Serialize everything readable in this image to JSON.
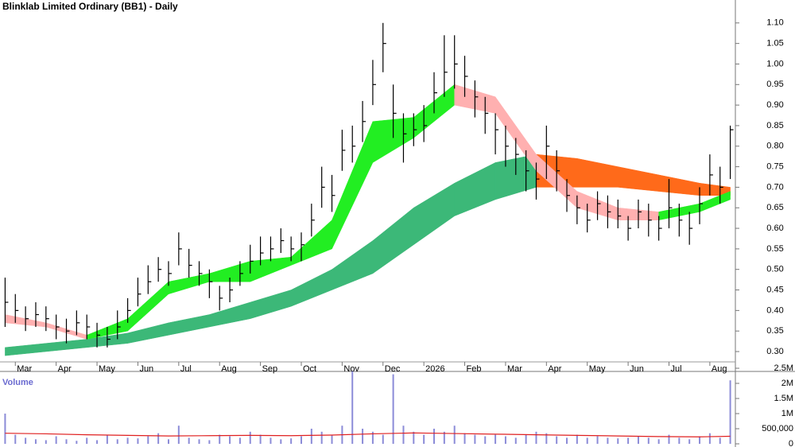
{
  "chart_data": {
    "type": "ohlc",
    "title": "Blinklab Limited Ordinary (BB1) - Daily",
    "categories": [
      null,
      "Mar",
      null,
      null,
      null,
      "Apr",
      null,
      null,
      null,
      "May",
      null,
      null,
      null,
      "Jun",
      null,
      null,
      null,
      "Jul",
      null,
      null,
      null,
      "Aug",
      null,
      null,
      null,
      "Sep",
      null,
      null,
      null,
      "Oct",
      null,
      null,
      null,
      "Nov",
      null,
      null,
      null,
      "Dec",
      null,
      null,
      null,
      "2026",
      null,
      null,
      null,
      "Feb",
      null,
      null,
      null,
      "Mar",
      null,
      null,
      null,
      "Apr",
      null,
      null,
      null,
      "May",
      null,
      null,
      null,
      "Jun",
      null,
      null,
      null,
      "Jul",
      null,
      null,
      null,
      "Aug",
      null,
      null
    ],
    "high": [
      0.48,
      0.44,
      0.41,
      0.42,
      0.41,
      0.39,
      0.38,
      0.4,
      0.39,
      0.37,
      0.36,
      0.4,
      0.43,
      0.48,
      0.51,
      0.53,
      0.52,
      0.59,
      0.55,
      0.52,
      0.5,
      0.46,
      0.48,
      0.52,
      0.56,
      0.58,
      0.58,
      0.6,
      0.58,
      0.59,
      0.66,
      0.75,
      0.73,
      0.84,
      0.85,
      0.91,
      1.01,
      1.1,
      0.95,
      0.88,
      0.88,
      0.9,
      0.98,
      1.07,
      1.07,
      1.02,
      0.96,
      0.92,
      0.88,
      0.85,
      0.82,
      0.79,
      0.76,
      0.85,
      0.79,
      0.72,
      0.68,
      0.66,
      0.69,
      0.68,
      0.67,
      0.63,
      0.67,
      0.66,
      0.63,
      0.72,
      0.66,
      0.64,
      0.7,
      0.78,
      0.75,
      0.85
    ],
    "low": [
      0.36,
      0.37,
      0.35,
      0.36,
      0.35,
      0.33,
      0.32,
      0.34,
      0.33,
      0.31,
      0.31,
      0.33,
      0.37,
      0.41,
      0.44,
      0.47,
      0.46,
      0.51,
      0.48,
      0.46,
      0.43,
      0.4,
      0.42,
      0.46,
      0.49,
      0.51,
      0.52,
      0.54,
      0.52,
      0.52,
      0.58,
      0.65,
      0.64,
      0.74,
      0.76,
      0.81,
      0.9,
      0.98,
      0.82,
      0.76,
      0.8,
      0.81,
      0.88,
      0.92,
      0.94,
      0.92,
      0.87,
      0.83,
      0.78,
      0.75,
      0.73,
      0.69,
      0.67,
      0.72,
      0.69,
      0.64,
      0.61,
      0.59,
      0.62,
      0.6,
      0.6,
      0.57,
      0.6,
      0.58,
      0.57,
      0.6,
      0.58,
      0.56,
      0.61,
      0.68,
      0.66,
      0.72
    ],
    "close": [
      0.42,
      0.4,
      0.38,
      0.39,
      0.38,
      0.36,
      0.35,
      0.37,
      0.36,
      0.34,
      0.33,
      0.36,
      0.4,
      0.44,
      0.47,
      0.5,
      0.49,
      0.55,
      0.51,
      0.49,
      0.47,
      0.43,
      0.45,
      0.49,
      0.52,
      0.54,
      0.55,
      0.57,
      0.55,
      0.56,
      0.62,
      0.7,
      0.68,
      0.79,
      0.8,
      0.86,
      0.95,
      1.05,
      0.88,
      0.83,
      0.84,
      0.85,
      0.93,
      0.98,
      1.0,
      0.97,
      0.92,
      0.88,
      0.84,
      0.8,
      0.78,
      0.74,
      0.72,
      0.8,
      0.74,
      0.68,
      0.65,
      0.62,
      0.66,
      0.64,
      0.63,
      0.6,
      0.64,
      0.62,
      0.6,
      0.65,
      0.62,
      0.6,
      0.66,
      0.73,
      0.7,
      0.84
    ],
    "color": "#000000",
    "ylim": [
      0.27,
      1.15
    ],
    "yticks": [
      {
        "value": 1.1,
        "label": "1.10"
      },
      1.05,
      {
        "value": 1.0,
        "label": "1.00"
      },
      0.95,
      {
        "value": 0.9,
        "label": "0.90"
      },
      0.85,
      {
        "value": 0.8,
        "label": "0.80"
      },
      0.75,
      {
        "value": 0.7,
        "label": "0.70"
      },
      0.65,
      {
        "value": 0.6,
        "label": "0.60"
      },
      0.55,
      {
        "value": 0.5,
        "label": "0.50"
      },
      0.45,
      {
        "value": 0.4,
        "label": "0.40"
      },
      0.35,
      {
        "value": 0.3,
        "label": "0.30"
      }
    ],
    "bands": [
      {
        "x": [
          0,
          4,
          8,
          12,
          16,
          20,
          24,
          28,
          32,
          36,
          40,
          44,
          48,
          52,
          56,
          60,
          64,
          68,
          71
        ],
        "upper": [
          0.31,
          0.32,
          0.33,
          0.345,
          0.37,
          0.39,
          0.42,
          0.45,
          0.5,
          0.57,
          0.65,
          0.71,
          0.76,
          0.78,
          0.77,
          0.75,
          0.73,
          0.71,
          0.7
        ],
        "lower": [
          0.29,
          0.3,
          0.31,
          0.32,
          0.34,
          0.36,
          0.38,
          0.41,
          0.45,
          0.49,
          0.56,
          0.63,
          0.67,
          0.7,
          0.7,
          0.7,
          0.69,
          0.68,
          0.68
        ],
        "color": "#3cb878",
        "falling_color": "#ff6a1a"
      },
      {
        "x": [
          0,
          4,
          8,
          12,
          16,
          20,
          24,
          28,
          32,
          36,
          40,
          44,
          48,
          52,
          56,
          60,
          64,
          68,
          71
        ],
        "upper": [
          0.39,
          0.37,
          0.34,
          0.38,
          0.47,
          0.49,
          0.52,
          0.53,
          0.62,
          0.86,
          0.87,
          0.95,
          0.92,
          0.78,
          0.69,
          0.65,
          0.64,
          0.66,
          0.69
        ],
        "lower": [
          0.37,
          0.36,
          0.33,
          0.35,
          0.44,
          0.47,
          0.47,
          0.51,
          0.55,
          0.76,
          0.82,
          0.9,
          0.88,
          0.74,
          0.65,
          0.62,
          0.62,
          0.64,
          0.67
        ],
        "color": "#22ee22",
        "falling_color": "#ffb0b0"
      }
    ],
    "volume": {
      "label": "Volume",
      "values": [
        1000000,
        300000,
        200000,
        150000,
        120000,
        250000,
        150000,
        100000,
        200000,
        120000,
        300000,
        150000,
        200000,
        180000,
        250000,
        350000,
        150000,
        600000,
        200000,
        150000,
        120000,
        300000,
        250000,
        200000,
        400000,
        300000,
        200000,
        150000,
        180000,
        250000,
        500000,
        400000,
        300000,
        600000,
        2400000,
        500000,
        400000,
        300000,
        2300000,
        600000,
        400000,
        300000,
        500000,
        400000,
        600000,
        350000,
        300000,
        250000,
        300000,
        250000,
        200000,
        300000,
        400000,
        350000,
        250000,
        200000,
        300000,
        200000,
        250000,
        200000,
        180000,
        200000,
        250000,
        200000,
        150000,
        300000,
        200000,
        150000,
        250000,
        350000,
        200000,
        2100000
      ],
      "color": "#8c8cd8",
      "avg_x": [
        0,
        4,
        8,
        12,
        16,
        20,
        24,
        28,
        32,
        36,
        40,
        44,
        48,
        52,
        56,
        60,
        64,
        68,
        71
      ],
      "avg": [
        350000,
        330000,
        300000,
        280000,
        260000,
        270000,
        280000,
        270000,
        290000,
        330000,
        360000,
        340000,
        320000,
        300000,
        280000,
        260000,
        240000,
        230000,
        250000
      ],
      "avg_color": "#e02020",
      "y2lim": [
        0,
        2500000
      ],
      "y2ticks": [
        0,
        {
          "value": 500000,
          "label": "500,000"
        },
        {
          "value": 1000000,
          "label": "1M"
        },
        {
          "value": 1500000,
          "label": "1.5M"
        },
        {
          "value": 2000000,
          "label": "2M"
        },
        {
          "value": 2500000,
          "label": "2.5M"
        }
      ]
    }
  }
}
